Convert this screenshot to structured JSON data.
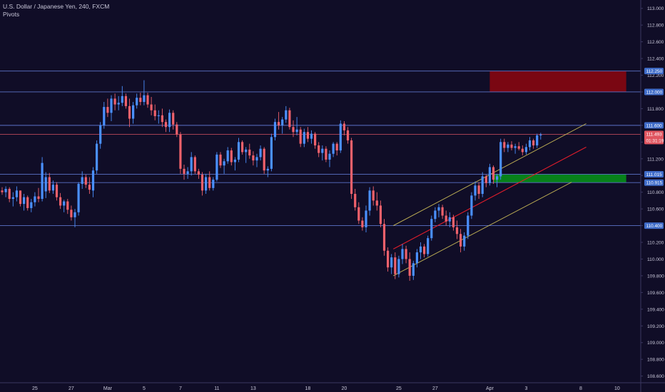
{
  "header": {
    "title": "U.S. Dollar / Japanese Yen, 240, FXCM",
    "indicator": "Pivots"
  },
  "colors": {
    "background": "#100d27",
    "up_candle": "#4a90ff",
    "down_candle": "#f0616b",
    "hline": "#5b73c9",
    "current_line": "#b8485a",
    "channel_outer": "#c8b857",
    "channel_mid": "#e01d2b",
    "supply_zone": "#7a0712",
    "demand_zone": "#07811a",
    "axis_text": "#c8c6d8",
    "badge_blue": "#3f6cc9",
    "badge_red": "#e05560"
  },
  "chart_data": {
    "type": "candlestick",
    "symbol": "U.S. Dollar / Japanese Yen",
    "timeframe": "240",
    "ylim": [
      108.52,
      113.1
    ],
    "y_ticks": [
      "113.000",
      "112.800",
      "112.600",
      "112.400",
      "112.200",
      "112.000",
      "111.800",
      "111.600",
      "111.400",
      "111.200",
      "111.000",
      "110.800",
      "110.600",
      "110.400",
      "110.200",
      "110.000",
      "109.800",
      "109.600",
      "109.400",
      "109.200",
      "109.000",
      "108.800",
      "108.600"
    ],
    "x_ticks": [
      {
        "label": "25",
        "bar": 9
      },
      {
        "label": "27",
        "bar": 19
      },
      {
        "label": "Mar",
        "bar": 29
      },
      {
        "label": "5",
        "bar": 39
      },
      {
        "label": "7",
        "bar": 49
      },
      {
        "label": "11",
        "bar": 59
      },
      {
        "label": "13",
        "bar": 69
      },
      {
        "label": "18",
        "bar": 84
      },
      {
        "label": "20",
        "bar": 94
      },
      {
        "label": "25",
        "bar": 109
      },
      {
        "label": "27",
        "bar": 119
      },
      {
        "label": "Apr",
        "bar": 134
      },
      {
        "label": "3",
        "bar": 144
      },
      {
        "label": "8",
        "bar": 159
      },
      {
        "label": "10",
        "bar": 169
      }
    ],
    "horizontal_levels": [
      {
        "price": 112.25,
        "label": "112.250"
      },
      {
        "price": 112.0,
        "label": "112.000"
      },
      {
        "price": 111.6,
        "label": "111.600"
      },
      {
        "price": 111.015,
        "label": "111.015"
      },
      {
        "price": 110.915,
        "label": "110.915"
      },
      {
        "price": 110.4,
        "label": "110.400"
      }
    ],
    "current_price": {
      "price": 111.493,
      "label": "111.493",
      "countdown": "01:31:19"
    },
    "zones": [
      {
        "name": "supply",
        "from_bar": 134,
        "to_bar": 171.5,
        "top": 112.25,
        "bottom": 112.0
      },
      {
        "name": "demand",
        "from_bar": 135,
        "to_bar": 171.5,
        "top": 111.015,
        "bottom": 110.915
      }
    ],
    "trend_lines": [
      {
        "name": "channel-upper",
        "x1": 107.5,
        "y1": 110.4,
        "x2": 160.5,
        "y2": 111.62
      },
      {
        "name": "channel-mid",
        "x1": 107.5,
        "y1": 110.12,
        "x2": 160.5,
        "y2": 111.34
      },
      {
        "name": "channel-lower",
        "x1": 107.5,
        "y1": 109.8,
        "x2": 156.5,
        "y2": 110.92
      }
    ],
    "candles": [
      [
        110.82,
        110.86,
        110.77,
        110.8
      ],
      [
        110.8,
        110.87,
        110.74,
        110.84
      ],
      [
        110.84,
        110.86,
        110.68,
        110.72
      ],
      [
        110.72,
        110.8,
        110.63,
        110.74
      ],
      [
        110.74,
        110.87,
        110.69,
        110.82
      ],
      [
        110.82,
        110.82,
        110.63,
        110.66
      ],
      [
        110.66,
        110.78,
        110.58,
        110.74
      ],
      [
        110.74,
        110.76,
        110.58,
        110.61
      ],
      [
        110.61,
        110.72,
        110.56,
        110.68
      ],
      [
        110.68,
        110.8,
        110.63,
        110.75
      ],
      [
        110.75,
        110.85,
        110.68,
        110.72
      ],
      [
        110.72,
        111.22,
        110.69,
        111.15
      ],
      [
        110.81,
        111.04,
        110.73,
        110.98
      ],
      [
        110.98,
        111.03,
        110.79,
        110.82
      ],
      [
        110.82,
        110.94,
        110.78,
        110.89
      ],
      [
        110.89,
        110.92,
        110.7,
        110.74
      ],
      [
        110.74,
        110.79,
        110.6,
        110.64
      ],
      [
        110.64,
        110.71,
        110.56,
        110.69
      ],
      [
        110.69,
        110.72,
        110.54,
        110.59
      ],
      [
        110.59,
        110.64,
        110.46,
        110.5
      ],
      [
        110.5,
        110.6,
        110.38,
        110.56
      ],
      [
        110.56,
        110.92,
        110.52,
        110.9
      ],
      [
        110.9,
        111.05,
        110.84,
        110.98
      ],
      [
        110.98,
        111.01,
        110.85,
        110.89
      ],
      [
        110.89,
        110.98,
        110.78,
        110.83
      ],
      [
        110.82,
        111.1,
        110.74,
        111.06
      ],
      [
        111.06,
        111.42,
        111.02,
        111.38
      ],
      [
        111.38,
        111.64,
        111.32,
        111.6
      ],
      [
        111.6,
        111.88,
        111.56,
        111.82
      ],
      [
        111.82,
        111.92,
        111.7,
        111.75
      ],
      [
        111.75,
        111.96,
        111.65,
        111.92
      ],
      [
        111.92,
        111.98,
        111.78,
        111.85
      ],
      [
        111.85,
        111.95,
        111.78,
        111.87
      ],
      [
        111.87,
        112.07,
        111.83,
        111.95
      ],
      [
        111.95,
        111.98,
        111.8,
        111.83
      ],
      [
        111.83,
        111.92,
        111.58,
        111.68
      ],
      [
        111.68,
        111.88,
        111.62,
        111.84
      ],
      [
        111.84,
        111.98,
        111.8,
        111.93
      ],
      [
        111.93,
        111.99,
        111.84,
        111.88
      ],
      [
        111.88,
        112.14,
        111.84,
        111.96
      ],
      [
        111.96,
        111.99,
        111.81,
        111.85
      ],
      [
        111.85,
        111.94,
        111.72,
        111.78
      ],
      [
        111.78,
        111.85,
        111.66,
        111.71
      ],
      [
        111.71,
        111.78,
        111.62,
        111.72
      ],
      [
        111.72,
        111.8,
        111.58,
        111.64
      ],
      [
        111.64,
        111.67,
        111.52,
        111.58
      ],
      [
        111.58,
        111.79,
        111.52,
        111.75
      ],
      [
        111.75,
        111.78,
        111.55,
        111.61
      ],
      [
        111.61,
        111.64,
        111.46,
        111.49
      ],
      [
        111.49,
        111.52,
        111.02,
        111.08
      ],
      [
        111.08,
        111.13,
        110.95,
        111.02
      ],
      [
        111.02,
        111.1,
        110.96,
        111.05
      ],
      [
        111.05,
        111.28,
        111.0,
        111.22
      ],
      [
        111.22,
        111.24,
        111.02,
        111.05
      ],
      [
        111.05,
        111.08,
        110.96,
        111.01
      ],
      [
        111.01,
        111.04,
        110.76,
        110.82
      ],
      [
        110.82,
        111.02,
        110.78,
        110.98
      ],
      [
        110.98,
        111.05,
        110.82,
        110.85
      ],
      [
        110.85,
        110.98,
        110.82,
        110.95
      ],
      [
        110.95,
        111.28,
        110.93,
        111.25
      ],
      [
        111.25,
        111.28,
        111.09,
        111.12
      ],
      [
        111.12,
        111.2,
        111.02,
        111.17
      ],
      [
        111.17,
        111.34,
        111.14,
        111.3
      ],
      [
        111.3,
        111.33,
        111.12,
        111.16
      ],
      [
        111.16,
        111.22,
        111.06,
        111.19
      ],
      [
        111.19,
        111.45,
        111.16,
        111.4
      ],
      [
        111.4,
        111.42,
        111.25,
        111.28
      ],
      [
        111.28,
        111.34,
        111.15,
        111.31
      ],
      [
        111.31,
        111.38,
        111.2,
        111.24
      ],
      [
        111.24,
        111.29,
        111.12,
        111.18
      ],
      [
        111.18,
        111.26,
        111.1,
        111.22
      ],
      [
        111.22,
        111.36,
        111.18,
        111.32
      ],
      [
        111.32,
        111.34,
        111.02,
        111.06
      ],
      [
        111.06,
        111.11,
        110.98,
        111.08
      ],
      [
        111.08,
        111.5,
        111.05,
        111.46
      ],
      [
        111.46,
        111.68,
        111.42,
        111.64
      ],
      [
        111.64,
        111.76,
        111.55,
        111.6
      ],
      [
        111.6,
        111.7,
        111.5,
        111.67
      ],
      [
        111.67,
        111.83,
        111.63,
        111.78
      ],
      [
        111.78,
        111.81,
        111.55,
        111.58
      ],
      [
        111.58,
        111.66,
        111.46,
        111.52
      ],
      [
        111.52,
        111.7,
        111.48,
        111.55
      ],
      [
        111.55,
        111.58,
        111.34,
        111.38
      ],
      [
        111.38,
        111.56,
        111.34,
        111.52
      ],
      [
        111.52,
        111.58,
        111.4,
        111.44
      ],
      [
        111.44,
        111.54,
        111.38,
        111.5
      ],
      [
        111.5,
        111.52,
        111.32,
        111.36
      ],
      [
        111.36,
        111.4,
        111.22,
        111.27
      ],
      [
        111.27,
        111.36,
        111.18,
        111.32
      ],
      [
        111.32,
        111.35,
        111.16,
        111.19
      ],
      [
        111.19,
        111.3,
        111.1,
        111.26
      ],
      [
        111.26,
        111.4,
        111.22,
        111.38
      ],
      [
        111.38,
        111.4,
        111.24,
        111.3
      ],
      [
        111.3,
        111.66,
        111.27,
        111.62
      ],
      [
        111.62,
        111.65,
        111.48,
        111.54
      ],
      [
        111.54,
        111.58,
        111.38,
        111.42
      ],
      [
        111.42,
        111.45,
        110.72,
        110.78
      ],
      [
        110.78,
        110.84,
        110.58,
        110.62
      ],
      [
        110.62,
        110.68,
        110.42,
        110.46
      ],
      [
        110.46,
        110.5,
        110.34,
        110.38
      ],
      [
        110.38,
        110.64,
        110.32,
        110.58
      ],
      [
        110.58,
        110.86,
        110.52,
        110.82
      ],
      [
        110.82,
        110.87,
        110.64,
        110.7
      ],
      [
        110.7,
        110.8,
        110.58,
        110.64
      ],
      [
        110.64,
        110.7,
        110.38,
        110.42
      ],
      [
        110.42,
        110.48,
        110.04,
        110.1
      ],
      [
        110.1,
        110.14,
        109.85,
        109.9
      ],
      [
        109.9,
        110.06,
        109.82,
        110.02
      ],
      [
        110.02,
        110.08,
        109.76,
        109.82
      ],
      [
        109.82,
        110.04,
        109.78,
        110.0
      ],
      [
        110.0,
        110.18,
        109.94,
        110.12
      ],
      [
        110.12,
        110.16,
        109.95,
        110.0
      ],
      [
        110.0,
        110.08,
        109.74,
        109.8
      ],
      [
        109.8,
        109.98,
        109.75,
        109.95
      ],
      [
        109.95,
        110.12,
        109.9,
        110.08
      ],
      [
        110.08,
        110.2,
        110.0,
        110.15
      ],
      [
        110.15,
        110.18,
        110.02,
        110.06
      ],
      [
        110.06,
        110.28,
        110.03,
        110.25
      ],
      [
        110.25,
        110.52,
        110.22,
        110.48
      ],
      [
        110.48,
        110.62,
        110.44,
        110.58
      ],
      [
        110.58,
        110.66,
        110.5,
        110.62
      ],
      [
        110.62,
        110.65,
        110.48,
        110.52
      ],
      [
        110.52,
        110.58,
        110.4,
        110.45
      ],
      [
        110.45,
        110.56,
        110.38,
        110.5
      ],
      [
        110.5,
        110.53,
        110.34,
        110.38
      ],
      [
        110.38,
        110.46,
        110.24,
        110.3
      ],
      [
        110.3,
        110.36,
        110.08,
        110.15
      ],
      [
        110.15,
        110.32,
        110.1,
        110.28
      ],
      [
        110.28,
        110.56,
        110.24,
        110.52
      ],
      [
        110.52,
        110.8,
        110.48,
        110.76
      ],
      [
        110.76,
        110.93,
        110.7,
        110.88
      ],
      [
        110.88,
        110.92,
        110.72,
        110.78
      ],
      [
        110.78,
        111.04,
        110.74,
        110.99
      ],
      [
        110.99,
        111.01,
        110.86,
        110.91
      ],
      [
        110.91,
        111.14,
        110.88,
        111.1
      ],
      [
        111.1,
        111.12,
        110.9,
        110.95
      ],
      [
        110.95,
        111.02,
        110.86,
        110.99
      ],
      [
        110.99,
        111.44,
        110.95,
        111.4
      ],
      [
        111.4,
        111.44,
        111.28,
        111.33
      ],
      [
        111.33,
        111.4,
        111.28,
        111.37
      ],
      [
        111.37,
        111.41,
        111.3,
        111.33
      ],
      [
        111.33,
        111.38,
        111.26,
        111.35
      ],
      [
        111.35,
        111.4,
        111.3,
        111.32
      ],
      [
        111.32,
        111.36,
        111.24,
        111.28
      ],
      [
        111.28,
        111.38,
        111.25,
        111.34
      ],
      [
        111.34,
        111.46,
        111.3,
        111.42
      ],
      [
        111.42,
        111.44,
        111.32,
        111.36
      ],
      [
        111.36,
        111.5,
        111.33,
        111.48
      ],
      [
        111.48,
        111.51,
        111.43,
        111.49
      ]
    ]
  }
}
